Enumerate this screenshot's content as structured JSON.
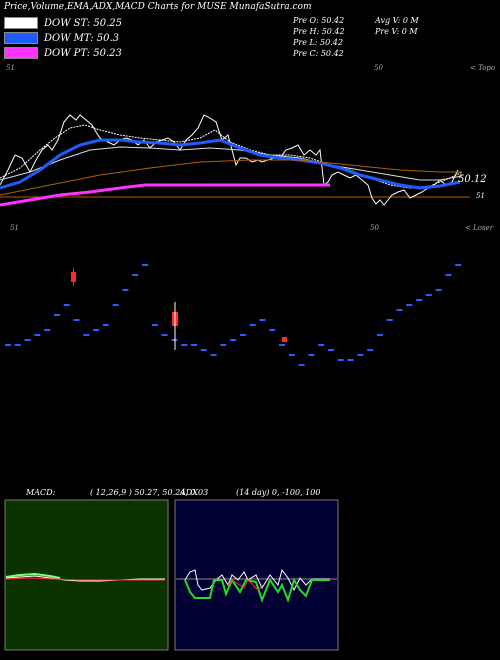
{
  "page_title": "Price,Volume,EMA,ADX,MACD Charts for MUSE MunafaSutra.com",
  "legend": [
    {
      "label": "DOW ST: 50.25",
      "color": "#ffffff"
    },
    {
      "label": "DOW MT: 50.3",
      "color": "#1e5cff"
    },
    {
      "label": "DOW PT: 50.23",
      "color": "#ff33ff"
    }
  ],
  "info_left": [
    "Pre  O: 50.42",
    "Pre  H: 50.42",
    "Pre  L: 50.42",
    "Pre  C: 50.42"
  ],
  "info_right": [
    "Avg V: 0  M",
    "Pre  V: 0  M"
  ],
  "top_labels": {
    "topo": "< Topo",
    "loser": "< Loser",
    "tick_51_a": "51",
    "tick_50_a": "50",
    "tick_51_b": "51",
    "tick_50_b": "50"
  },
  "price_label": "50.12",
  "level_label": "51",
  "macd": {
    "label": "MACD:",
    "params": "( 12,26,9 ) 50.27,  50.24,  0.03"
  },
  "adx": {
    "label": "ADX",
    "params": "(14  day) 0,  -100,  100"
  },
  "colors": {
    "macd_bg": "#0a3300",
    "adx_bg": "#000033",
    "ema_blue": "#1e5cff",
    "ema_magenta": "#ff33ff",
    "ema_brown": "#b06000",
    "candle_red": "#ff2a2a",
    "candle_blue": "#2a5cff"
  },
  "chart_data": {
    "type": "line",
    "title": "Price,Volume,EMA,ADX,MACD Charts for MUSE MunafaSutra.com",
    "series": [
      {
        "name": "DOW ST",
        "values": [
          50.25
        ]
      },
      {
        "name": "DOW MT",
        "values": [
          50.3
        ]
      },
      {
        "name": "DOW PT",
        "values": [
          50.23
        ]
      }
    ],
    "last_price": 50.12,
    "volume_bars": [
      0.2,
      0.2,
      0.25,
      0.3,
      0.35,
      0.5,
      0.6,
      0.45,
      0.3,
      0.35,
      0.4,
      0.6,
      0.75,
      0.9,
      1.0,
      0.4,
      0.3,
      0.25,
      0.2,
      0.2,
      0.15,
      0.1,
      0.2,
      0.25,
      0.3,
      0.4,
      0.45,
      0.35,
      0.2,
      0.1,
      0.0,
      0.1,
      0.2,
      0.15,
      0.05,
      0.05,
      0.1,
      0.15,
      0.3,
      0.45,
      0.55,
      0.6,
      0.65,
      0.7,
      0.75,
      0.9,
      1.0
    ]
  }
}
